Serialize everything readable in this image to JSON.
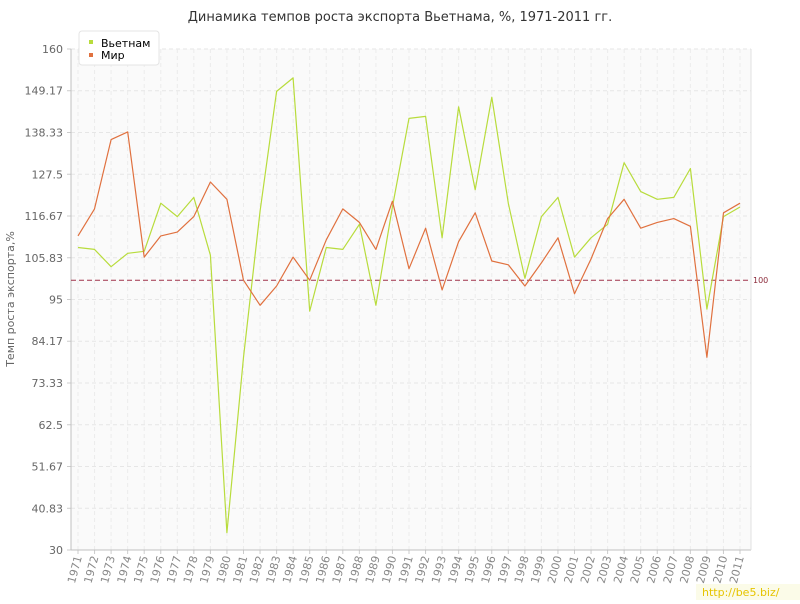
{
  "chart_data": {
    "type": "line",
    "title": "Динамика темпов роста экспорта Вьетнама, %, 1971-2011 гг.",
    "xlabel": "",
    "ylabel": "Темп роста экспорта,%",
    "ylim": [
      30,
      160
    ],
    "yticks": [
      "30",
      "40.83",
      "51.67",
      "62.5",
      "73.33",
      "84.17",
      "95",
      "105.83",
      "116.67",
      "127.5",
      "138.33",
      "149.17",
      "160"
    ],
    "x": [
      "1971",
      "1972",
      "1973",
      "1974",
      "1975",
      "1976",
      "1977",
      "1978",
      "1979",
      "1980",
      "1981",
      "1982",
      "1983",
      "1984",
      "1985",
      "1986",
      "1987",
      "1988",
      "1989",
      "1990",
      "1991",
      "1992",
      "1993",
      "1994",
      "1995",
      "1996",
      "1997",
      "1998",
      "1999",
      "2000",
      "2001",
      "2002",
      "2003",
      "2004",
      "2005",
      "2006",
      "2007",
      "2008",
      "2009",
      "2010",
      "2011"
    ],
    "series": [
      {
        "name": "Вьетнам",
        "color": "#b8dc3c",
        "values": [
          108.5,
          108.0,
          103.5,
          107.0,
          107.5,
          120.0,
          116.5,
          121.5,
          106.5,
          34.5,
          80.0,
          118.0,
          149.0,
          152.5,
          92.0,
          108.5,
          108.0,
          114.5,
          93.5,
          119.0,
          142.0,
          142.5,
          111.0,
          145.0,
          123.5,
          147.5,
          120.0,
          100.5,
          116.5,
          121.5,
          106.0,
          111.0,
          114.5,
          130.5,
          123.0,
          121.0,
          121.5,
          129.0,
          92.5,
          116.5,
          119.0
        ]
      },
      {
        "name": "Мир",
        "color": "#e0713f",
        "values": [
          111.5,
          118.5,
          136.5,
          138.5,
          106.0,
          111.5,
          112.5,
          116.5,
          125.5,
          121.0,
          100.0,
          93.5,
          98.5,
          106.0,
          100.0,
          110.5,
          118.5,
          115.0,
          108.0,
          120.5,
          103.0,
          113.5,
          97.5,
          110.0,
          117.5,
          105.0,
          104.0,
          98.5,
          104.5,
          111.0,
          96.5,
          105.5,
          116.0,
          121.0,
          113.5,
          115.0,
          116.0,
          114.0,
          80.0,
          117.5,
          120.0
        ]
      }
    ],
    "reference_line": {
      "value": 100,
      "label": "100",
      "color": "#a0334a",
      "style": "dashed"
    },
    "grid": true,
    "legend": "top-left"
  },
  "watermark": "http://be5.biz/"
}
